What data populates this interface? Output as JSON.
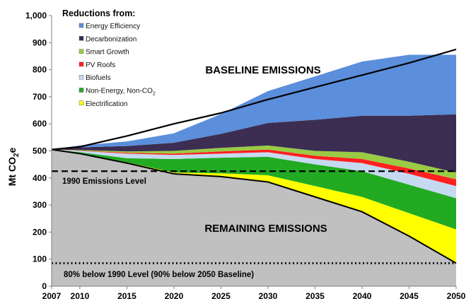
{
  "chart_data": {
    "type": "area",
    "xlabel": "",
    "ylabel": "Mt CO",
    "ylabel_sub": "2",
    "ylabel_suffix": "e",
    "xlim": [
      2007,
      2050
    ],
    "ylim": [
      0,
      1000
    ],
    "x_ticks": [
      2007,
      2010,
      2015,
      2020,
      2025,
      2030,
      2035,
      2040,
      2045,
      2050
    ],
    "y_ticks": [
      0,
      100,
      200,
      300,
      400,
      500,
      600,
      700,
      800,
      900,
      1000
    ],
    "y_tick_labels": [
      "0",
      "100",
      "200",
      "300",
      "400",
      "500",
      "600",
      "700",
      "800",
      "900",
      "1,000"
    ],
    "x": [
      2007,
      2010,
      2015,
      2020,
      2025,
      2030,
      2035,
      2040,
      2045,
      2050
    ],
    "remaining_emissions": [
      505,
      490,
      455,
      415,
      405,
      385,
      330,
      275,
      185,
      85
    ],
    "series": [
      {
        "name": "Electrification",
        "color": "#ffff00",
        "values": [
          0,
          2,
          3,
          5,
          12,
          25,
          40,
          55,
          85,
          125
        ]
      },
      {
        "name": "Non-Energy, Non-CO",
        "sub": "2",
        "color": "#22aa22",
        "values": [
          0,
          3,
          15,
          50,
          58,
          68,
          80,
          95,
          105,
          115
        ]
      },
      {
        "name": "Biofuels",
        "color": "#c6d9f1",
        "values": [
          0,
          5,
          17,
          15,
          15,
          17,
          20,
          30,
          40,
          45
        ]
      },
      {
        "name": "PV Roofs",
        "color": "#ff2020",
        "values": [
          0,
          1,
          3,
          5,
          8,
          10,
          12,
          15,
          20,
          25
        ]
      },
      {
        "name": "Smart Growth",
        "color": "#99cc44",
        "values": [
          0,
          2,
          5,
          10,
          13,
          15,
          18,
          25,
          25,
          25
        ]
      },
      {
        "name": "Decarbonization",
        "color": "#3b2e52",
        "values": [
          0,
          10,
          20,
          30,
          52,
          83,
          115,
          135,
          170,
          215
        ]
      },
      {
        "name": "Energy Efficiency",
        "color": "#5b8edb",
        "values": [
          0,
          7,
          17,
          35,
          73,
          118,
          160,
          200,
          225,
          220
        ]
      }
    ],
    "baseline_emissions": [
      505,
      515,
      555,
      600,
      640,
      690,
      735,
      780,
      825,
      875
    ],
    "reference_lines": [
      {
        "label": "1990 Emissions Level",
        "value": 425,
        "style": "dashed"
      },
      {
        "label": "80% below 1990 Level (90% below 2050 Baseline)",
        "value": 85,
        "style": "dotted"
      }
    ],
    "annotations": {
      "baseline": "BASELINE EMISSIONS",
      "remaining": "REMAINING EMISSIONS"
    },
    "legend_title": "Reductions from:",
    "legend_position": "top-left",
    "colors": {
      "remaining": "#c0c0c0",
      "line": "#000000"
    }
  }
}
